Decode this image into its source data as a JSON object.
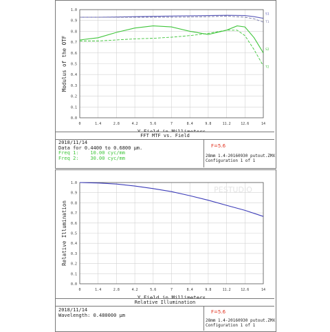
{
  "chart_data": [
    {
      "type": "line",
      "title": "FFT MTF vs. Field",
      "xlabel": "Y Field in Millimeters",
      "ylabel": "Modulus of the OTF",
      "xlim": [
        0,
        14
      ],
      "ylim": [
        0,
        1.0
      ],
      "x_ticks": [
        "0",
        "1.4",
        "2.8",
        "4.2",
        "5.6",
        "7",
        "8.4",
        "9.8",
        "11.2",
        "12.6",
        "14"
      ],
      "y_ticks": [
        "0.0",
        "0.1",
        "0.2",
        "0.3",
        "0.4",
        "0.5",
        "0.6",
        "0.7",
        "0.8",
        "0.9",
        "1.0"
      ],
      "grid": true,
      "series": [
        {
          "name": "S1",
          "style": "solid",
          "color": "#5a5ab8",
          "x": [
            0,
            1.4,
            2.8,
            4.2,
            5.6,
            7,
            8.4,
            9.8,
            11.2,
            12.6,
            13.3,
            14
          ],
          "y": [
            0.93,
            0.93,
            0.932,
            0.935,
            0.938,
            0.941,
            0.943,
            0.945,
            0.948,
            0.945,
            0.935,
            0.92
          ]
        },
        {
          "name": "T1",
          "style": "dashed",
          "color": "#7a7aa8",
          "x": [
            0,
            1.4,
            2.8,
            4.2,
            5.6,
            7,
            8.4,
            9.8,
            11.2,
            12.6,
            13.3,
            14
          ],
          "y": [
            0.93,
            0.93,
            0.93,
            0.93,
            0.93,
            0.93,
            0.932,
            0.935,
            0.94,
            0.93,
            0.915,
            0.885
          ]
        },
        {
          "name": "S2",
          "style": "solid",
          "color": "#3fc53a",
          "x": [
            0,
            1.4,
            2.8,
            4.2,
            5.6,
            7,
            8.4,
            9.8,
            11.2,
            12,
            12.6,
            13.3,
            14
          ],
          "y": [
            0.72,
            0.74,
            0.79,
            0.83,
            0.85,
            0.84,
            0.8,
            0.77,
            0.81,
            0.85,
            0.84,
            0.74,
            0.6
          ]
        },
        {
          "name": "T2",
          "style": "dashed",
          "color": "#3fc53a",
          "x": [
            0,
            1.4,
            2.8,
            4.2,
            5.6,
            7,
            8.4,
            9.8,
            11.2,
            12,
            12.6,
            13.3,
            14
          ],
          "y": [
            0.71,
            0.71,
            0.72,
            0.73,
            0.735,
            0.745,
            0.76,
            0.78,
            0.81,
            0.81,
            0.76,
            0.63,
            0.48
          ]
        }
      ]
    },
    {
      "type": "line",
      "title": "Relative Illumination",
      "xlabel": "Y Field in Millimeters",
      "ylabel": "Relative Illumination",
      "xlim": [
        0,
        14
      ],
      "ylim": [
        0,
        1.0
      ],
      "x_ticks": [
        "0",
        "1.4",
        "2.8",
        "4.2",
        "5.6",
        "7",
        "8.4",
        "9.8",
        "11.2",
        "12.6",
        "14"
      ],
      "y_ticks": [
        "0.0",
        "0.1",
        "0.2",
        "0.3",
        "0.4",
        "0.5",
        "0.6",
        "0.7",
        "0.8",
        "0.9",
        "1.0"
      ],
      "grid": true,
      "series": [
        {
          "style": "solid",
          "color": "#3b3bb8",
          "x": [
            0,
            1.4,
            2.8,
            4.2,
            5.6,
            7,
            8.4,
            9.8,
            11.2,
            12.6,
            14
          ],
          "y": [
            1.0,
            0.995,
            0.985,
            0.965,
            0.94,
            0.91,
            0.87,
            0.825,
            0.775,
            0.725,
            0.665
          ]
        }
      ]
    }
  ],
  "mtf_panel": {
    "title": "FFT MTF vs. Field",
    "date": "2018/11/14",
    "data_for": "Data for 0.4400 to 0.6800 μm.",
    "freq1": "Freq 1:    10.00 cyc/mm",
    "freq2": "Freq 2:    30.00 cyc/mm",
    "fnumber": "F=5.6",
    "file": "28mm 1.4-20160930 putout.ZMX",
    "config": "Configuration 1 of 1",
    "legend": [
      "S1",
      "T1",
      "S2",
      "T2"
    ]
  },
  "ri_panel": {
    "title": "Relative Illumination",
    "date": "2018/11/14",
    "wavelength": "Wavelength: 0.480000 μm",
    "fnumber": "F=5.6",
    "file": "28mm 1.4-20160930 putout.ZMX",
    "config": "Configuration 1 of 1"
  },
  "watermark": "PESTUDIO"
}
